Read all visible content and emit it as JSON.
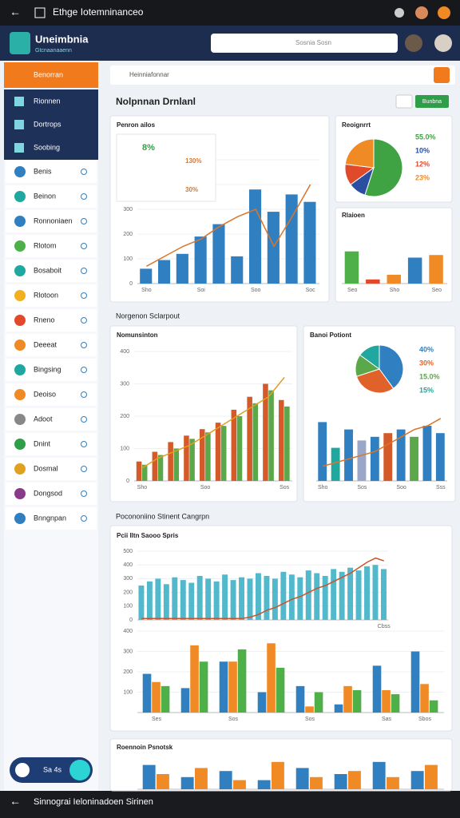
{
  "status_bar": {
    "title": "Ethge Iotemninanceo"
  },
  "header": {
    "app_name": "Uneimbnia",
    "subtitle": "Gtcnaanaaenn",
    "search_placeholder": "Sosnia Sosn"
  },
  "sidebar": {
    "primary": "Benorran",
    "dark_items": [
      "Rionnen",
      "Dortrops",
      "Soobing"
    ],
    "items": [
      "Benis",
      "Beinon",
      "Ronnoniaen",
      "Rlotom",
      "Bosaboit",
      "Rlotoon",
      "Rneno",
      "Deeeat",
      "Bingsing",
      "Deoiso",
      "Adoot",
      "Dnint",
      "Dosmal",
      "Dongsod",
      "Bnngnpan"
    ],
    "footer": "Sa 4s"
  },
  "toolbar": {
    "breadcrumb": "Heinniafonnar"
  },
  "page_title": "Nolpnnan Drnlanl",
  "button": "Bunbna",
  "sections": [
    "Norgenon Sclarpout",
    "Pocononiino Stinent Cangrpn"
  ],
  "bottom_bar": {
    "title": "Sinnograi Ieloninadoen Sirinen"
  },
  "chart_data": [
    {
      "type": "bar",
      "title": "Penron ailos",
      "annotations": [
        "8%",
        "130%",
        "30%"
      ],
      "categories": [
        "Sho",
        null,
        null,
        "Soi",
        null,
        null,
        "Soo",
        null,
        null,
        "Soc"
      ],
      "ylim": [
        0,
        500
      ],
      "yticks": [
        0,
        100,
        200,
        300,
        400,
        500
      ],
      "series": [
        {
          "color": "#2f7fc1",
          "values": [
            60,
            95,
            120,
            190,
            240,
            110,
            380,
            290,
            360,
            330
          ]
        },
        {
          "type": "line",
          "color": "#d9762b",
          "values": [
            70,
            110,
            150,
            180,
            230,
            270,
            300,
            150,
            270,
            400
          ]
        }
      ]
    },
    {
      "type": "pie",
      "title": "Reoignrrt",
      "values": [
        55,
        10,
        12,
        23
      ],
      "value_labels": [
        "55.0%",
        "10%",
        "12%",
        "23%"
      ],
      "colors": [
        "#3fa344",
        "#2b4fa0",
        "#e04a2a",
        "#f08a24"
      ]
    },
    {
      "type": "bar",
      "title": "Rlaioen",
      "categories": [
        "Seo",
        null,
        "Sho",
        null,
        "Seo"
      ],
      "ylim": [
        0,
        100
      ],
      "series": [
        {
          "colors": [
            "#4fb04a",
            "#e04a2a",
            "#f08a24",
            "#2f7fc1",
            "#f08a24"
          ],
          "values": [
            62,
            8,
            17,
            50,
            55
          ]
        }
      ]
    },
    {
      "type": "bar",
      "title": "Nomunsinton",
      "categories": [
        "Sho",
        null,
        null,
        null,
        "Soo",
        null,
        null,
        null,
        null,
        "Sos"
      ],
      "ylim": [
        0,
        400
      ],
      "yticks": [
        0,
        100,
        200,
        300,
        400
      ],
      "series": [
        {
          "color": "#d45a2a",
          "values": [
            60,
            90,
            120,
            140,
            160,
            180,
            220,
            260,
            300,
            250
          ]
        },
        {
          "color": "#5aa84a",
          "values": [
            50,
            80,
            100,
            130,
            150,
            170,
            200,
            240,
            280,
            230
          ]
        },
        {
          "type": "line",
          "color": "#e0a020",
          "values": [
            40,
            70,
            90,
            110,
            140,
            170,
            200,
            230,
            260,
            320
          ]
        }
      ]
    },
    {
      "type": "pie",
      "title": "Banoi Potiont",
      "values": [
        40,
        30,
        15,
        15
      ],
      "value_labels": [
        "40%",
        "30%",
        "15.0%",
        "15%"
      ],
      "colors": [
        "#2f7fc1",
        "#e0622a",
        "#5aa84a",
        "#1fa7a0"
      ]
    },
    {
      "type": "bar",
      "categories": [
        "Sho",
        null,
        null,
        "Sos",
        null,
        null,
        "Soo",
        null,
        null,
        "Sss"
      ],
      "ylim": [
        0,
        100
      ],
      "series": [
        {
          "colors": [
            "#2f7fc1",
            "#1fa7a0",
            "#2f7fc1",
            "#9aa7c9",
            "#2f7fc1",
            "#d45a2a",
            "#2f7fc1",
            "#5aa84a",
            "#2f7fc1",
            "#2f7fc1"
          ],
          "values": [
            80,
            45,
            70,
            55,
            60,
            65,
            70,
            60,
            75,
            65
          ]
        },
        {
          "type": "line",
          "color": "#d9762b",
          "values": [
            20,
            25,
            30,
            35,
            40,
            50,
            60,
            70,
            75,
            85
          ]
        }
      ]
    },
    {
      "type": "bar",
      "title": "Pcii Iltn Saooo Spris",
      "categories": [
        null,
        null,
        null,
        null,
        null,
        null,
        null,
        null,
        null,
        null,
        null,
        null,
        null,
        null,
        null,
        null,
        null,
        null,
        null,
        null,
        null,
        null,
        null,
        null,
        null,
        null,
        null,
        null,
        null,
        "Cbss"
      ],
      "ylim": [
        0,
        500
      ],
      "yticks": [
        0,
        100,
        200,
        300,
        400,
        500
      ],
      "series": [
        {
          "color": "#52b8cc",
          "values": [
            250,
            280,
            300,
            260,
            310,
            290,
            270,
            320,
            300,
            280,
            330,
            290,
            310,
            300,
            340,
            320,
            300,
            350,
            330,
            310,
            360,
            340,
            320,
            370,
            350,
            380,
            360,
            390,
            400,
            370
          ]
        },
        {
          "type": "line",
          "color": "#c8552a",
          "values": [
            10,
            10,
            10,
            10,
            10,
            10,
            10,
            10,
            10,
            10,
            10,
            10,
            10,
            20,
            40,
            70,
            90,
            120,
            150,
            170,
            200,
            230,
            250,
            280,
            310,
            340,
            380,
            420,
            450,
            430
          ]
        }
      ]
    },
    {
      "type": "bar",
      "categories": [
        "Ses",
        null,
        "Sos",
        null,
        "Sos",
        null,
        "Sas",
        "Sbos"
      ],
      "ylim": [
        0,
        400
      ],
      "yticks": [
        100,
        200,
        300,
        400
      ],
      "series": [
        {
          "color": "#2f7fc1",
          "values": [
            190,
            120,
            250,
            100,
            130,
            40,
            230,
            300
          ]
        },
        {
          "color": "#f08a24",
          "values": [
            150,
            330,
            250,
            340,
            30,
            130,
            110,
            140
          ]
        },
        {
          "color": "#4fb04a",
          "values": [
            130,
            250,
            310,
            220,
            100,
            110,
            90,
            60
          ]
        }
      ]
    },
    {
      "type": "bar",
      "title": "Roennoin Psnotsk",
      "categories": [
        null,
        null,
        null,
        null,
        null,
        null,
        null,
        null
      ],
      "ylim": [
        0,
        100
      ],
      "series": [
        {
          "color": "#2f7fc1",
          "values": [
            80,
            40,
            60,
            30,
            70,
            50,
            90,
            60
          ]
        },
        {
          "color": "#f08a24",
          "values": [
            50,
            70,
            30,
            90,
            40,
            60,
            40,
            80
          ]
        }
      ]
    }
  ]
}
